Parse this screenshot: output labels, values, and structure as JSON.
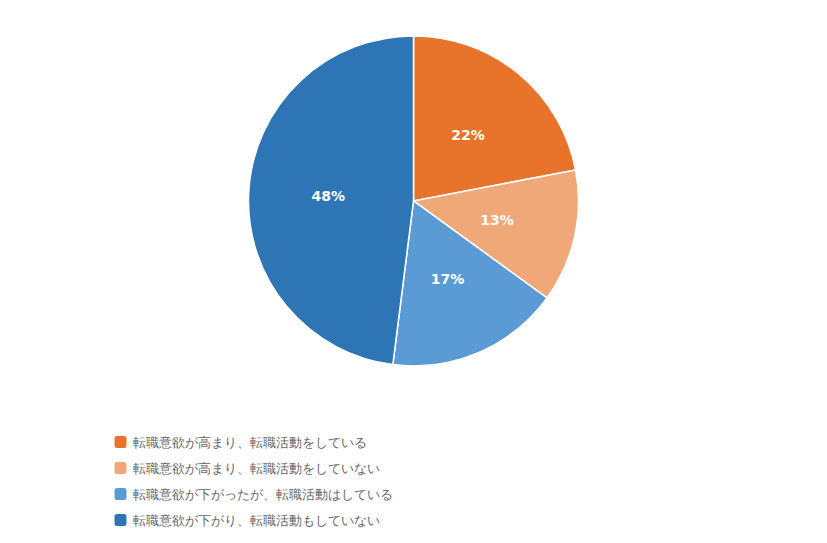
{
  "chart_data": {
    "type": "pie",
    "categories": [
      "転職意欲が高まり、転職活動をしている",
      "転職意欲が高まり、転職活動をしていない",
      "転職意欲が下がったが、転職活動はしている",
      "転職意欲が下がり、転職活動もしていない"
    ],
    "values": [
      22,
      13,
      17,
      48
    ],
    "value_labels": [
      "22%",
      "13%",
      "17%",
      "48%"
    ],
    "colors": [
      "#E8732A",
      "#F0A878",
      "#5B9BD5",
      "#2E75B6"
    ],
    "data_labels": true,
    "legend": "lower left"
  }
}
